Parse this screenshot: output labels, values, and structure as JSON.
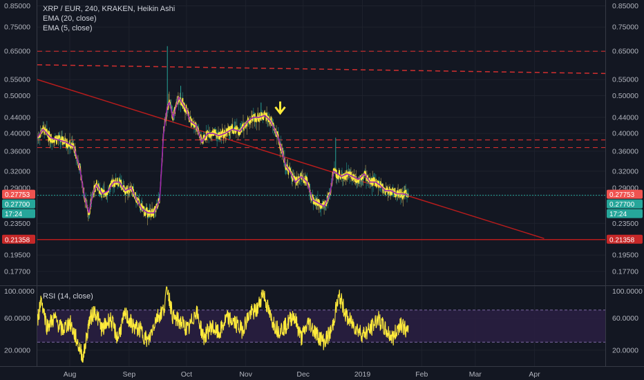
{
  "chart_data": [
    {
      "type": "line",
      "title": "XRP / EUR, 240, KRAKEN, Heikin Ashi",
      "price_scale": "log",
      "ylim": [
        0.163,
        0.88
      ],
      "xlim": [
        "2018-07-15",
        "2019-05-08"
      ],
      "grid": true,
      "legend": [
        "XRP / EUR, 240, KRAKEN, Heikin Ashi",
        "EMA (20, close)",
        "EMA (5, close)"
      ],
      "y_ticks_left": [
        "0.85000",
        "0.75000",
        "0.65000",
        "0.55000",
        "0.50000",
        "0.44000",
        "0.40000",
        "0.36000",
        "0.32000",
        "0.29000",
        "0.27700",
        "0.23500",
        "0.21358",
        "0.19500",
        "0.17700"
      ],
      "y_ticks_right": [
        "0.85000",
        "0.75000",
        "0.65000",
        "0.55000",
        "0.50000",
        "0.44000",
        "0.40000",
        "0.36000",
        "0.32000",
        "0.29000",
        "0.27753",
        "0.27700",
        "0.23500",
        "0.21358",
        "0.19500",
        "0.17700"
      ],
      "x_ticks": [
        "Aug",
        "Sep",
        "Oct",
        "Nov",
        "Dec",
        "2019",
        "Feb",
        "Mar",
        "Apr"
      ],
      "x_tick_dates": [
        "2018-08-01",
        "2018-09-01",
        "2018-10-01",
        "2018-11-01",
        "2018-12-01",
        "2019-01-01",
        "2019-02-01",
        "2019-03-01",
        "2019-04-01"
      ],
      "series": [
        {
          "name": "EMA (20, close)",
          "color": "#9c27b0",
          "x": [
            "2018-07-15",
            "2018-07-18",
            "2018-07-22",
            "2018-07-26",
            "2018-07-30",
            "2018-08-03",
            "2018-08-06",
            "2018-08-09",
            "2018-08-11",
            "2018-08-13",
            "2018-08-15",
            "2018-08-18",
            "2018-08-21",
            "2018-08-24",
            "2018-08-27",
            "2018-08-30",
            "2018-09-02",
            "2018-09-05",
            "2018-09-08",
            "2018-09-11",
            "2018-09-14",
            "2018-09-17",
            "2018-09-19",
            "2018-09-21",
            "2018-09-22",
            "2018-09-24",
            "2018-09-27",
            "2018-10-01",
            "2018-10-03",
            "2018-10-06",
            "2018-10-09",
            "2018-10-12",
            "2018-10-15",
            "2018-10-18",
            "2018-10-21",
            "2018-10-25",
            "2018-10-29",
            "2018-11-02",
            "2018-11-05",
            "2018-11-08",
            "2018-11-11",
            "2018-11-14",
            "2018-11-16",
            "2018-11-18",
            "2018-11-20",
            "2018-11-22",
            "2018-11-24",
            "2018-11-27",
            "2018-11-30",
            "2018-12-03",
            "2018-12-06",
            "2018-12-09",
            "2018-12-12",
            "2018-12-15",
            "2018-12-17",
            "2018-12-19",
            "2018-12-21",
            "2018-12-24",
            "2018-12-27",
            "2018-12-30",
            "2019-01-02",
            "2019-01-05",
            "2019-01-08",
            "2019-01-10",
            "2019-01-13",
            "2019-01-16",
            "2019-01-19",
            "2019-01-22",
            "2019-01-25"
          ],
          "y": [
            0.39,
            0.41,
            0.39,
            0.385,
            0.38,
            0.37,
            0.33,
            0.27,
            0.25,
            0.28,
            0.295,
            0.28,
            0.285,
            0.3,
            0.3,
            0.285,
            0.29,
            0.27,
            0.255,
            0.25,
            0.25,
            0.27,
            0.4,
            0.47,
            0.48,
            0.44,
            0.495,
            0.46,
            0.43,
            0.42,
            0.38,
            0.4,
            0.4,
            0.395,
            0.4,
            0.41,
            0.405,
            0.43,
            0.44,
            0.44,
            0.445,
            0.43,
            0.41,
            0.39,
            0.36,
            0.33,
            0.32,
            0.3,
            0.31,
            0.3,
            0.27,
            0.265,
            0.26,
            0.28,
            0.32,
            0.315,
            0.31,
            0.315,
            0.31,
            0.305,
            0.315,
            0.3,
            0.3,
            0.295,
            0.285,
            0.285,
            0.28,
            0.28,
            0.2775
          ]
        },
        {
          "name": "EMA (5, close)",
          "color": "#ffeb3b"
        }
      ],
      "horizontal_levels": [
        {
          "value": 0.65,
          "style": "dashed",
          "color": "#d32f2f"
        },
        {
          "value": 0.385,
          "style": "dashed",
          "color": "#d32f2f"
        },
        {
          "value": 0.368,
          "style": "dashed",
          "color": "#d32f2f"
        },
        {
          "value": 0.21358,
          "style": "solid",
          "color": "#b71c1c",
          "label": "0.21358"
        },
        {
          "value": 0.27753,
          "style": "dotted",
          "color": "#26a69a",
          "label": "0.27753"
        }
      ],
      "sloped_levels": [
        {
          "from": [
            "2018-07-15",
            0.6
          ],
          "to": [
            "2019-05-08",
            0.57
          ],
          "style": "dashed",
          "color": "#d32f2f"
        },
        {
          "from": [
            "2018-07-15",
            0.55
          ],
          "to": [
            "2019-04-06",
            0.215
          ],
          "style": "solid",
          "color": "#b71c1c"
        }
      ],
      "price_labels": {
        "last_price": "0.27753",
        "last_price_color": "#ef5350",
        "close": "0.27700",
        "close_color": "#26a69a",
        "countdown": "17:24",
        "countdown_color": "#26a69a",
        "level": "0.21358",
        "level_color": "#c62828"
      },
      "annotation": {
        "x": "2018-11-19",
        "y": 0.46,
        "type": "arrow-down",
        "color": "#ffeb3b"
      }
    },
    {
      "type": "line",
      "title": "RSI (14, close)",
      "ylim": [
        0,
        100
      ],
      "y_ticks": [
        "100.0000",
        "60.0000",
        "20.0000"
      ],
      "bands": {
        "upper": 70,
        "lower": 30,
        "fill": "#2a1f42"
      },
      "series": [
        {
          "name": "RSI (14, close)",
          "color": "#ffeb3b",
          "x": [
            "2018-07-15",
            "2018-07-17",
            "2018-07-20",
            "2018-07-24",
            "2018-07-28",
            "2018-08-01",
            "2018-08-05",
            "2018-08-08",
            "2018-08-11",
            "2018-08-14",
            "2018-08-18",
            "2018-08-22",
            "2018-08-26",
            "2018-08-30",
            "2018-09-03",
            "2018-09-07",
            "2018-09-11",
            "2018-09-15",
            "2018-09-19",
            "2018-09-21",
            "2018-09-24",
            "2018-09-28",
            "2018-10-02",
            "2018-10-06",
            "2018-10-10",
            "2018-10-14",
            "2018-10-18",
            "2018-10-22",
            "2018-10-26",
            "2018-10-30",
            "2018-11-03",
            "2018-11-07",
            "2018-11-10",
            "2018-11-14",
            "2018-11-18",
            "2018-11-22",
            "2018-11-26",
            "2018-11-30",
            "2018-12-04",
            "2018-12-08",
            "2018-12-12",
            "2018-12-16",
            "2018-12-18",
            "2018-12-20",
            "2018-12-24",
            "2018-12-28",
            "2019-01-01",
            "2019-01-05",
            "2019-01-09",
            "2019-01-13",
            "2019-01-17",
            "2019-01-21",
            "2019-01-25"
          ],
          "y": [
            55,
            85,
            50,
            60,
            45,
            55,
            30,
            10,
            55,
            70,
            45,
            60,
            35,
            65,
            50,
            45,
            30,
            60,
            70,
            98,
            60,
            55,
            45,
            70,
            35,
            50,
            40,
            60,
            55,
            45,
            65,
            70,
            93,
            60,
            45,
            50,
            65,
            35,
            55,
            40,
            30,
            45,
            70,
            87,
            60,
            50,
            40,
            45,
            60,
            45,
            35,
            55,
            40
          ]
        }
      ]
    }
  ]
}
